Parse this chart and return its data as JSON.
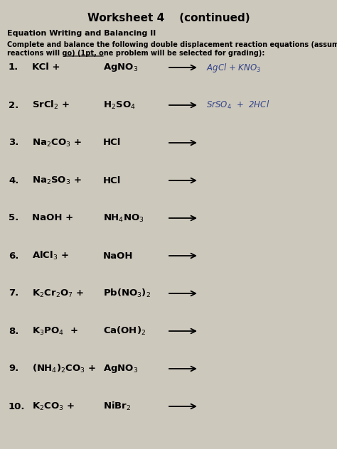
{
  "title": "Worksheet 4    (continued)",
  "subtitle": "Equation Writing and Balancing II",
  "instr1": "Complete and balance the following double displacement reaction equations (assume all",
  "instr2": "reactions will go) (1pt, one problem will be selected for grading):",
  "bg_color": "#cdc8bc",
  "reactions": [
    {
      "num": "1.",
      "r1": "KCl +",
      "r2": "AgNO$_3$",
      "products": "AgCl + KNO$_3$",
      "handwritten": true
    },
    {
      "num": "2.",
      "r1": "SrCl$_2$ +",
      "r2": "H$_2$SO$_4$",
      "products": "SrSO$_4$  +  2HCl",
      "handwritten": true
    },
    {
      "num": "3.",
      "r1": "Na$_2$CO$_3$ +",
      "r2": "HCl",
      "products": "",
      "handwritten": false
    },
    {
      "num": "4.",
      "r1": "Na$_2$SO$_3$ +",
      "r2": "HCl",
      "products": "",
      "handwritten": false
    },
    {
      "num": "5.",
      "r1": "NaOH +",
      "r2": "NH$_4$NO$_3$",
      "products": "",
      "handwritten": false
    },
    {
      "num": "6.",
      "r1": "AlCl$_3$ +",
      "r2": "NaOH",
      "products": "",
      "handwritten": false
    },
    {
      "num": "7.",
      "r1": "K$_2$Cr$_2$O$_7$ +",
      "r2": "Pb(NO$_3$)$_2$",
      "products": "",
      "handwritten": false
    },
    {
      "num": "8.",
      "r1": "K$_3$PO$_4$  +",
      "r2": "Ca(OH)$_2$",
      "products": "",
      "handwritten": false
    },
    {
      "num": "9.",
      "r1": "(NH$_4$)$_2$CO$_3$ +",
      "r2": "AgNO$_3$",
      "products": "",
      "handwritten": false
    },
    {
      "num": "10.",
      "r1": "K$_2$CO$_3$ +",
      "r2": "NiBr$_2$",
      "products": "",
      "handwritten": false
    }
  ]
}
